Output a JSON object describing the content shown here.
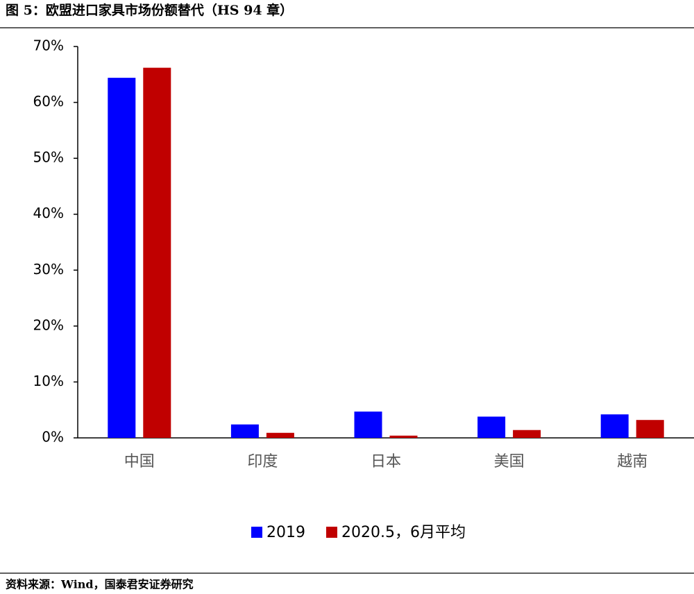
{
  "chart_data": {
    "type": "bar",
    "title": "图 5：欧盟进口家具市场份额替代（HS 94 章）",
    "source": "资料来源：Wind，国泰君安证券研究",
    "categories": [
      "中国",
      "印度",
      "日本",
      "美国",
      "越南"
    ],
    "series": [
      {
        "name": "2019",
        "color": "#0000ff",
        "values": [
          64.4,
          2.4,
          4.7,
          3.8,
          4.2
        ]
      },
      {
        "name": "2020.5，6月平均",
        "color": "#c00000",
        "values": [
          66.2,
          0.9,
          0.4,
          1.4,
          3.2
        ]
      }
    ],
    "ylim": [
      0,
      70
    ],
    "yticks": [
      {
        "value": 0,
        "label": "0%"
      },
      {
        "value": 10,
        "label": "10%"
      },
      {
        "value": 20,
        "label": "20%"
      },
      {
        "value": 30,
        "label": "30%"
      },
      {
        "value": 40,
        "label": "40%"
      },
      {
        "value": 50,
        "label": "50%"
      },
      {
        "value": 60,
        "label": "60%"
      },
      {
        "value": 70,
        "label": "70%"
      }
    ],
    "grid": false,
    "legend": "bottom"
  }
}
